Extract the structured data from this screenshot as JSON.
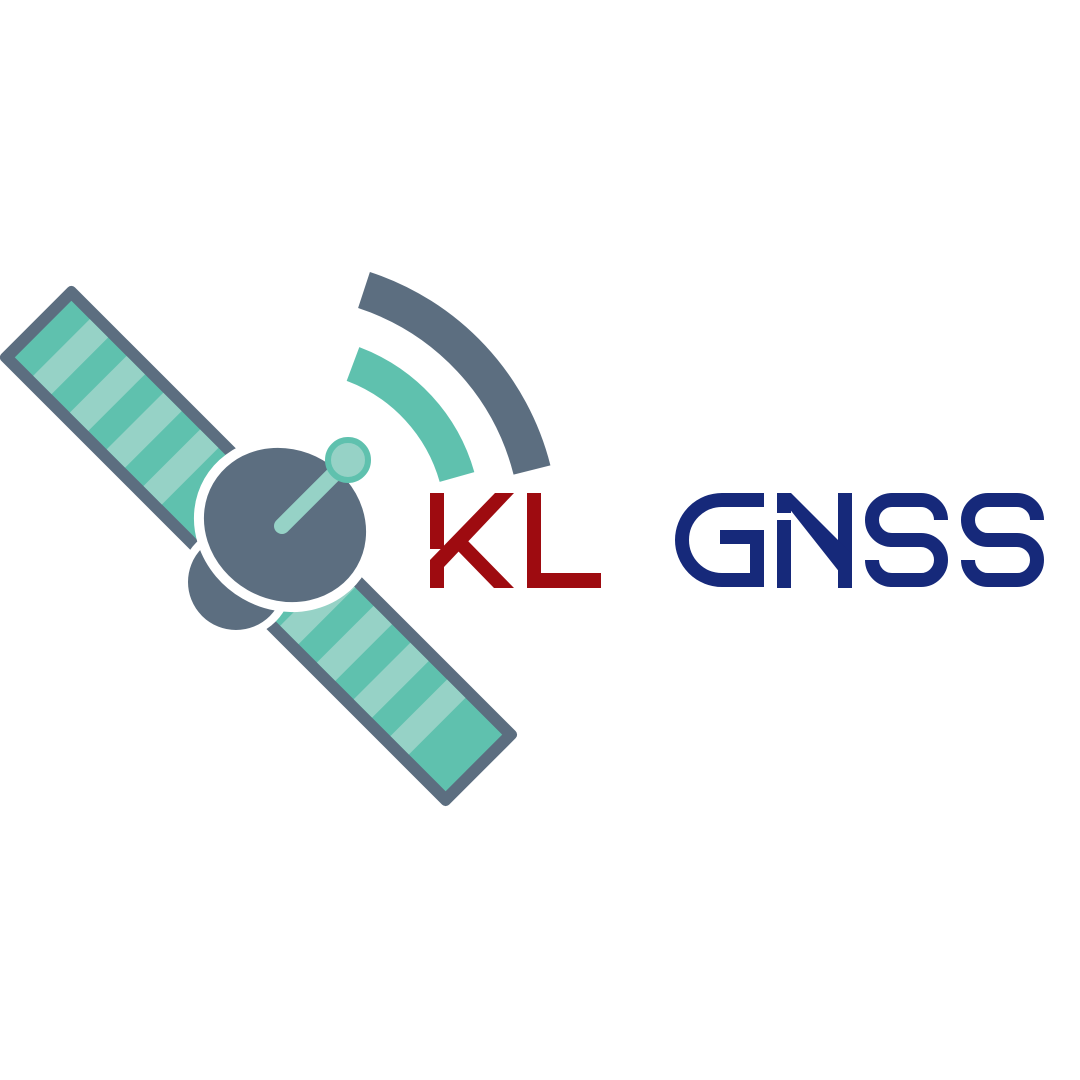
{
  "logo": {
    "brand_prefix": "KL",
    "brand_suffix": "GNSS",
    "icon": "satellite-icon",
    "colors": {
      "prefix": "#9e0b10",
      "suffix": "#16297a",
      "body": "#5c6e80",
      "panel_teal": "#5fc1ae",
      "panel_light": "#96d2c6",
      "signal_outer": "#5c6e80",
      "signal_inner": "#5fc1ae",
      "background": "#ffffff"
    }
  }
}
